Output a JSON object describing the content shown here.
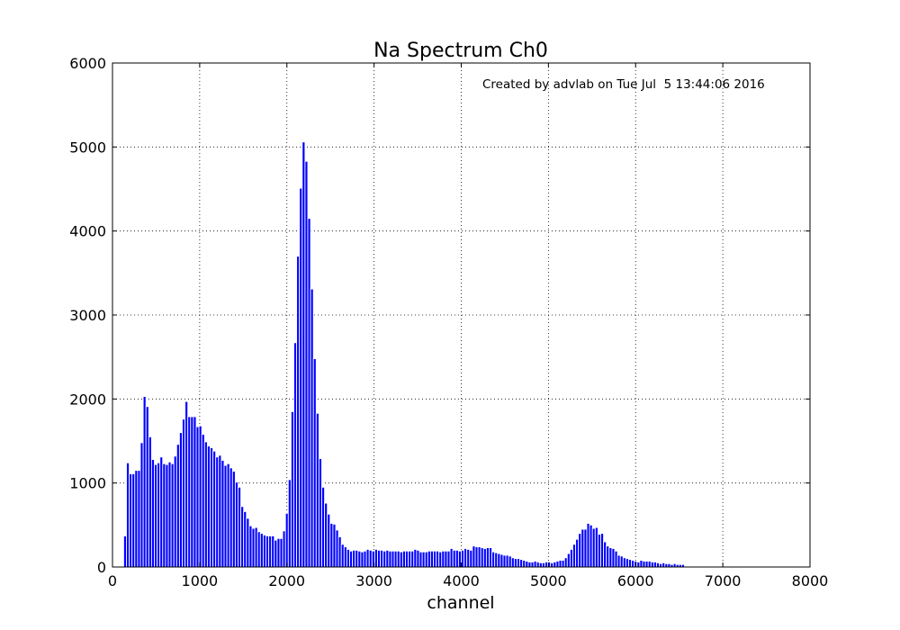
{
  "chart_data": {
    "type": "bar",
    "title": "Na Spectrum Ch0",
    "xlabel": "channel",
    "ylabel": "",
    "annotation": "Created by advlab on Tue Jul  5 13:44:06 2016",
    "xlim": [
      0,
      8000
    ],
    "ylim": [
      0,
      6000
    ],
    "xticks": [
      "0",
      "1000",
      "2000",
      "3000",
      "4000",
      "5000",
      "6000",
      "7000",
      "8000"
    ],
    "yticks": [
      "0",
      "1000",
      "2000",
      "3000",
      "4000",
      "5000",
      "6000"
    ],
    "grid": true,
    "bar_color": "#0000ff",
    "bin_width": 32,
    "x_start": 128,
    "values": [
      370,
      1240,
      1110,
      1110,
      1150,
      1150,
      1480,
      2030,
      1910,
      1550,
      1280,
      1220,
      1240,
      1310,
      1230,
      1220,
      1250,
      1230,
      1320,
      1460,
      1600,
      1760,
      1970,
      1790,
      1790,
      1790,
      1670,
      1680,
      1580,
      1490,
      1440,
      1420,
      1380,
      1310,
      1330,
      1270,
      1210,
      1230,
      1180,
      1140,
      1010,
      950,
      720,
      660,
      580,
      490,
      460,
      470,
      420,
      400,
      380,
      370,
      370,
      370,
      320,
      340,
      340,
      430,
      640,
      1040,
      1850,
      2670,
      3700,
      4510,
      5060,
      4830,
      4150,
      3310,
      2480,
      1830,
      1290,
      950,
      760,
      630,
      520,
      510,
      440,
      360,
      270,
      240,
      210,
      190,
      200,
      200,
      190,
      180,
      190,
      210,
      200,
      190,
      210,
      200,
      200,
      190,
      200,
      190,
      190,
      190,
      190,
      180,
      190,
      190,
      190,
      190,
      210,
      200,
      180,
      180,
      180,
      190,
      190,
      190,
      190,
      180,
      190,
      190,
      190,
      220,
      200,
      200,
      190,
      200,
      220,
      210,
      200,
      250,
      240,
      240,
      230,
      220,
      230,
      230,
      180,
      170,
      160,
      150,
      140,
      140,
      130,
      110,
      100,
      100,
      90,
      80,
      70,
      60,
      60,
      70,
      60,
      50,
      50,
      60,
      60,
      50,
      60,
      70,
      80,
      80,
      110,
      160,
      210,
      270,
      330,
      400,
      450,
      450,
      520,
      500,
      460,
      470,
      390,
      400,
      300,
      250,
      230,
      220,
      190,
      140,
      130,
      110,
      100,
      90,
      80,
      70,
      60,
      80,
      70,
      70,
      70,
      60,
      60,
      50,
      40,
      50,
      40,
      40,
      30,
      40,
      30,
      30,
      30
    ]
  }
}
